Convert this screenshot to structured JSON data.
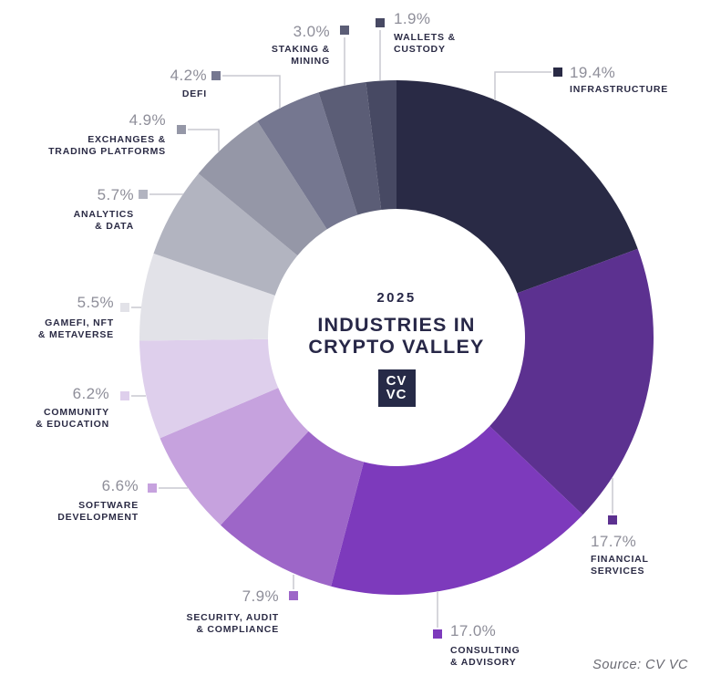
{
  "chart_data": {
    "type": "pie",
    "subtype": "donut",
    "year": "2025",
    "title": "INDUSTRIES IN CRYPTO VALLEY",
    "title_lines": [
      "INDUSTRIES IN",
      "CRYPTO VALLEY"
    ],
    "center_logo": "CV VC",
    "center_logo_lines": [
      "CV",
      "VC"
    ],
    "source": "Source: CV VC",
    "legend_position": "around",
    "start_angle_deg": 0,
    "direction": "clockwise",
    "series": [
      {
        "id": "infrastructure",
        "label": "INFRASTRUCTURE",
        "lines": [
          "INFRASTRUCTURE"
        ],
        "value": 19.4,
        "percent_label": "19.4%",
        "color": "#292a45"
      },
      {
        "id": "financial",
        "label": "FINANCIAL SERVICES",
        "lines": [
          "FINANCIAL",
          "SERVICES"
        ],
        "value": 17.7,
        "percent_label": "17.7%",
        "color": "#5c3190"
      },
      {
        "id": "consulting",
        "label": "CONSULTING & ADVISORY",
        "lines": [
          "CONSULTING",
          "& ADVISORY"
        ],
        "value": 17.0,
        "percent_label": "17.0%",
        "color": "#7d3abc"
      },
      {
        "id": "security",
        "label": "SECURITY, AUDIT & COMPLIANCE",
        "lines": [
          "SECURITY, AUDIT",
          "& COMPLIANCE"
        ],
        "value": 7.9,
        "percent_label": "7.9%",
        "color": "#9d66c8"
      },
      {
        "id": "software",
        "label": "SOFTWARE DEVELOPMENT",
        "lines": [
          "SOFTWARE",
          "DEVELOPMENT"
        ],
        "value": 6.6,
        "percent_label": "6.6%",
        "color": "#c6a2de"
      },
      {
        "id": "community",
        "label": "COMMUNITY & EDUCATION",
        "lines": [
          "COMMUNITY",
          "& EDUCATION"
        ],
        "value": 6.2,
        "percent_label": "6.2%",
        "color": "#decfec"
      },
      {
        "id": "gamefi",
        "label": "GAMEFI, NFT & METAVERSE",
        "lines": [
          "GAMEFI, NFT",
          "& METAVERSE"
        ],
        "value": 5.5,
        "percent_label": "5.5%",
        "color": "#e2e2e8"
      },
      {
        "id": "analytics",
        "label": "ANALYTICS & DATA",
        "lines": [
          "ANALYTICS",
          "& DATA"
        ],
        "value": 5.7,
        "percent_label": "5.7%",
        "color": "#b2b4c0"
      },
      {
        "id": "exchanges",
        "label": "EXCHANGES & TRADING PLATFORMS",
        "lines": [
          "EXCHANGES &",
          "TRADING PLATFORMS"
        ],
        "value": 4.9,
        "percent_label": "4.9%",
        "color": "#9597a7"
      },
      {
        "id": "defi",
        "label": "DEFI",
        "lines": [
          "DEFI"
        ],
        "value": 4.2,
        "percent_label": "4.2%",
        "color": "#757790"
      },
      {
        "id": "staking",
        "label": "STAKING & MINING",
        "lines": [
          "STAKING &",
          "MINING"
        ],
        "value": 3.0,
        "percent_label": "3.0%",
        "color": "#5b5d76"
      },
      {
        "id": "wallets",
        "label": "WALLETS & CUSTODY",
        "lines": [
          "WALLETS &",
          "CUSTODY"
        ],
        "value": 1.9,
        "percent_label": "1.9%",
        "color": "#474963"
      }
    ],
    "leader_line_color": "#c9c9d1"
  }
}
